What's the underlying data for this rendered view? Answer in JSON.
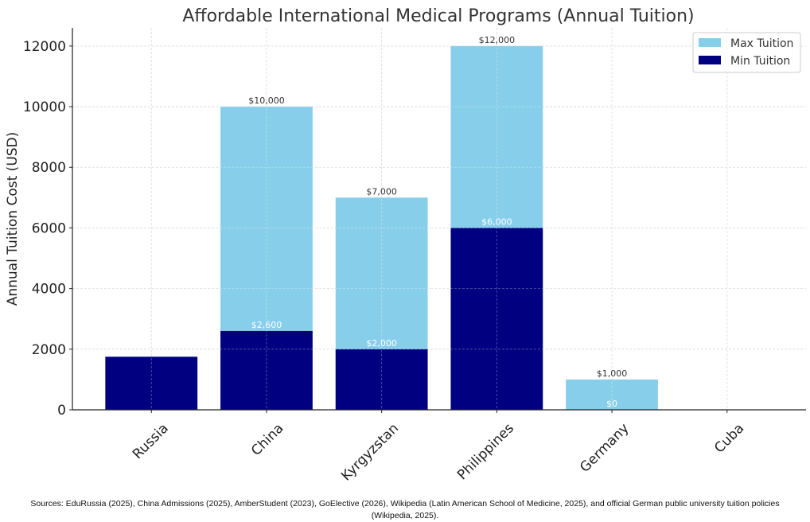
{
  "chart_data": {
    "type": "bar",
    "stacking": "overlaid",
    "title": "Affordable International Medical Programs (Annual Tuition)",
    "xlabel": "",
    "ylabel": "Annual Tuition Cost (USD)",
    "categories": [
      "Russia",
      "China",
      "Kyrgyzstan",
      "Philippines",
      "Germany",
      "Cuba"
    ],
    "series": [
      {
        "name": "Max Tuition",
        "color": "#87CEEB",
        "values": [
          1750,
          10000,
          7000,
          12000,
          1000,
          0
        ],
        "labels": [
          "",
          "$10,000",
          "$7,000",
          "$12,000",
          "$1,000",
          ""
        ]
      },
      {
        "name": "Min Tuition",
        "color": "#000080",
        "values": [
          1750,
          2600,
          2000,
          6000,
          0,
          0
        ],
        "labels": [
          "",
          "$2,600",
          "$2,000",
          "$6,000",
          "$0",
          ""
        ]
      }
    ],
    "ylim": [
      0,
      12600
    ],
    "yticks": [
      0,
      2000,
      4000,
      6000,
      8000,
      10000,
      12000
    ],
    "ytick_labels": [
      "0",
      "2000",
      "4000",
      "6000",
      "8000",
      "10000",
      "12000"
    ],
    "grid": true,
    "xtick_rotation_deg": 45,
    "legend": {
      "placement": "top-right",
      "entries": [
        "Max Tuition",
        "Min Tuition"
      ]
    }
  },
  "footer": {
    "sources": "Sources: EduRussia (2025), China Admissions (2025), AmberStudent (2023), GoElective (2026), Wikipedia (Latin American School of Medicine, 2025), and official German public university tuition policies (Wikipedia, 2025)."
  }
}
